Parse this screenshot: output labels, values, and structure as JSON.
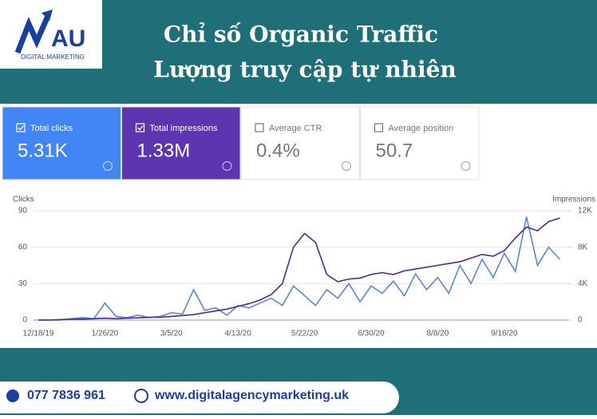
{
  "header": {
    "logo": "AU",
    "logo_subtitle": "DIGITAL MARKETING",
    "title": "Chỉ số Organic Traffic",
    "subtitle": "Lượng truy cập tự nhiên"
  },
  "cards": [
    {
      "label": "Total clicks",
      "value": "5.31K"
    },
    {
      "label": "Total impressions",
      "value": "1.33M"
    },
    {
      "label": "Average CTR",
      "value": "0.4%"
    },
    {
      "label": "Average position",
      "value": "50.7"
    }
  ],
  "chart_data": {
    "type": "line",
    "categories": [
      "12/18/19",
      null,
      null,
      null,
      null,
      null,
      "1/26/20",
      null,
      null,
      null,
      null,
      null,
      "3/5/20",
      null,
      null,
      null,
      null,
      null,
      "4/13/20",
      null,
      null,
      null,
      null,
      null,
      "5/22/20",
      null,
      null,
      null,
      null,
      null,
      "6/30/20",
      null,
      null,
      null,
      null,
      null,
      "8/8/20",
      null,
      null,
      null,
      null,
      null,
      "9/16/20",
      null,
      null,
      null,
      null,
      null
    ],
    "y_label": "Clicks",
    "y2_label": "Impressions",
    "series": [
      {
        "name": "Clicks",
        "color": "#5b85d8",
        "values": [
          0,
          0,
          0,
          1,
          2,
          1,
          14,
          3,
          2,
          4,
          2,
          3,
          6,
          5,
          25,
          8,
          10,
          4,
          12,
          10,
          14,
          18,
          12,
          28,
          20,
          12,
          25,
          18,
          30,
          15,
          28,
          22,
          32,
          20,
          38,
          25,
          35,
          22,
          45,
          30,
          50,
          35,
          55,
          40,
          85,
          45,
          60,
          50
        ]
      },
      {
        "name": "Impressions",
        "color": "#4a2a96",
        "axis": "y2",
        "values": [
          0,
          0,
          50,
          100,
          100,
          150,
          200,
          150,
          200,
          250,
          300,
          300,
          400,
          500,
          600,
          800,
          1000,
          1200,
          1500,
          1800,
          2200,
          2800,
          4000,
          8000,
          9500,
          8500,
          5000,
          4200,
          4500,
          4600,
          5000,
          5200,
          5000,
          5400,
          5600,
          5800,
          6000,
          6200,
          6400,
          6800,
          7200,
          7000,
          7600,
          9000,
          10200,
          9800,
          10800,
          11200
        ]
      }
    ],
    "ylim": [
      0,
      90
    ],
    "yticks": [
      0,
      30,
      60,
      90
    ],
    "y2lim": [
      0,
      12000
    ],
    "y2ticks": [
      0,
      {
        "value": 4000,
        "label": "4K"
      },
      {
        "value": 8000,
        "label": "8K"
      },
      {
        "value": 12000,
        "label": "12K"
      }
    ],
    "grid": true
  },
  "footer": {
    "phone": "077 7836 961",
    "website": "www.digitalagencymarketing.uk"
  }
}
